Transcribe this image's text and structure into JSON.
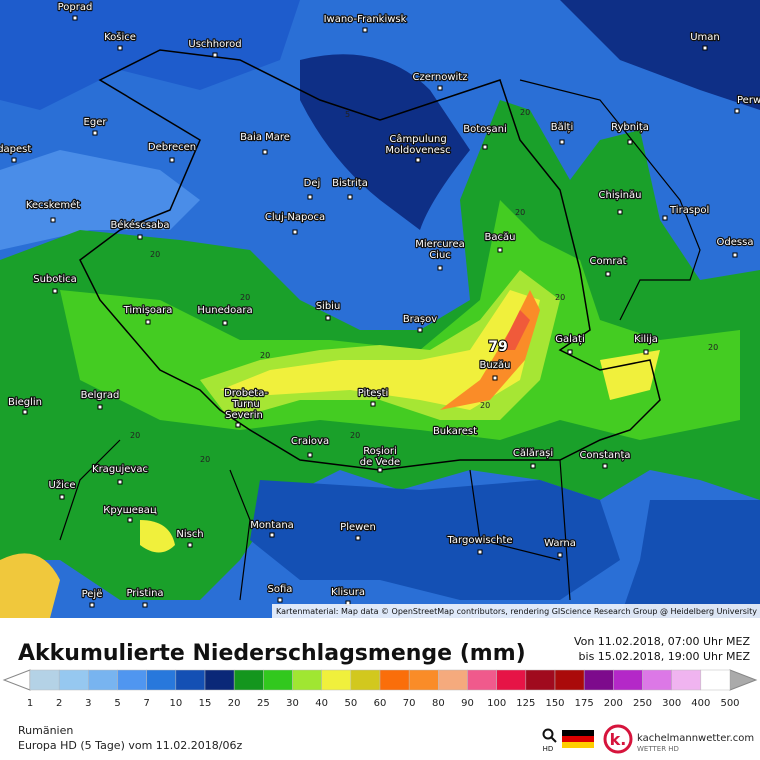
{
  "header": {
    "title": "Akkumulierte Niederschlagsmenge (mm)",
    "period_from": "Von 11.02.2018, 07:00 Uhr MEZ",
    "period_to": "bis 15.02.2018, 19:00 Uhr MEZ"
  },
  "map": {
    "cities": [
      "Poprad",
      "Košice",
      "Uschhorod",
      "Iwano-Frankiwsk",
      "Uman",
      "Czernowitz",
      "Perwomaisk",
      "Eger",
      "Budapest",
      "Debrecen",
      "Baia Mare",
      "Câmpulung",
      "Moldovenesc",
      "Botoșani",
      "Bălți",
      "Rybnița",
      "Dej",
      "Bistrița",
      "Chișinău",
      "Tiraspol",
      "Kecskemét",
      "Cluj-Napoca",
      "Békéscsaba",
      "Miercurea",
      "Ciuc",
      "Bacău",
      "Odessa",
      "Subotica",
      "Comrat",
      "Timișoara",
      "Hunedoara",
      "Sibiu",
      "Brașov",
      "Galați",
      "Kilija",
      "Buzău",
      "Bieglin",
      "Belgrad",
      "Drobeta-",
      "Turnu",
      "Severin",
      "Pitești",
      "Craiova",
      "Roșiori",
      "de Vede",
      "Bukarest",
      "Călărași",
      "Constanța",
      "Kragujevac",
      "Užice",
      "Крушевац",
      "Nisch",
      "Montana",
      "Plewen",
      "Targowischte",
      "Warna",
      "Pejë",
      "Pristina",
      "Sofia",
      "Klisura"
    ],
    "maximum": "79",
    "contour_labels": [
      "20",
      "20",
      "20",
      "20",
      "20",
      "20",
      "20",
      "20",
      "20",
      "5",
      "20",
      "20"
    ],
    "attribution": "Kartenmaterial: Map data © OpenStreetMap contributors, rendering GIScience Research Group @ Heidelberg University"
  },
  "legend": {
    "thresholds": [
      1,
      2,
      3,
      5,
      7,
      10,
      15,
      20,
      25,
      30,
      40,
      50,
      60,
      70,
      80,
      90,
      100,
      125,
      150,
      175,
      200,
      250,
      300,
      400,
      500
    ],
    "colors": [
      "#b4d2e6",
      "#96c8f0",
      "#78b4f0",
      "#5096f0",
      "#2878dc",
      "#1450b4",
      "#0a2878",
      "#14961e",
      "#32c81e",
      "#a0e632",
      "#f0f03c",
      "#d2c81e",
      "#fa6e0a",
      "#fa8c28",
      "#f5aa7d",
      "#f05a8c",
      "#e61446",
      "#a00a1e",
      "#aa0a0a",
      "#7d0a8c",
      "#b428c8",
      "#dc78e6",
      "#f0b4f0",
      "#ffffff"
    ],
    "low_color": "#ffffff",
    "high_color": "#aaaaaa"
  },
  "footer": {
    "region": "Rumänien",
    "model": "Europa HD (5 Tage) vom 11.02.2018/06z",
    "search_label": "HD",
    "brand": "kachelmannwetter.com",
    "brand_sub": "WETTER HD"
  }
}
